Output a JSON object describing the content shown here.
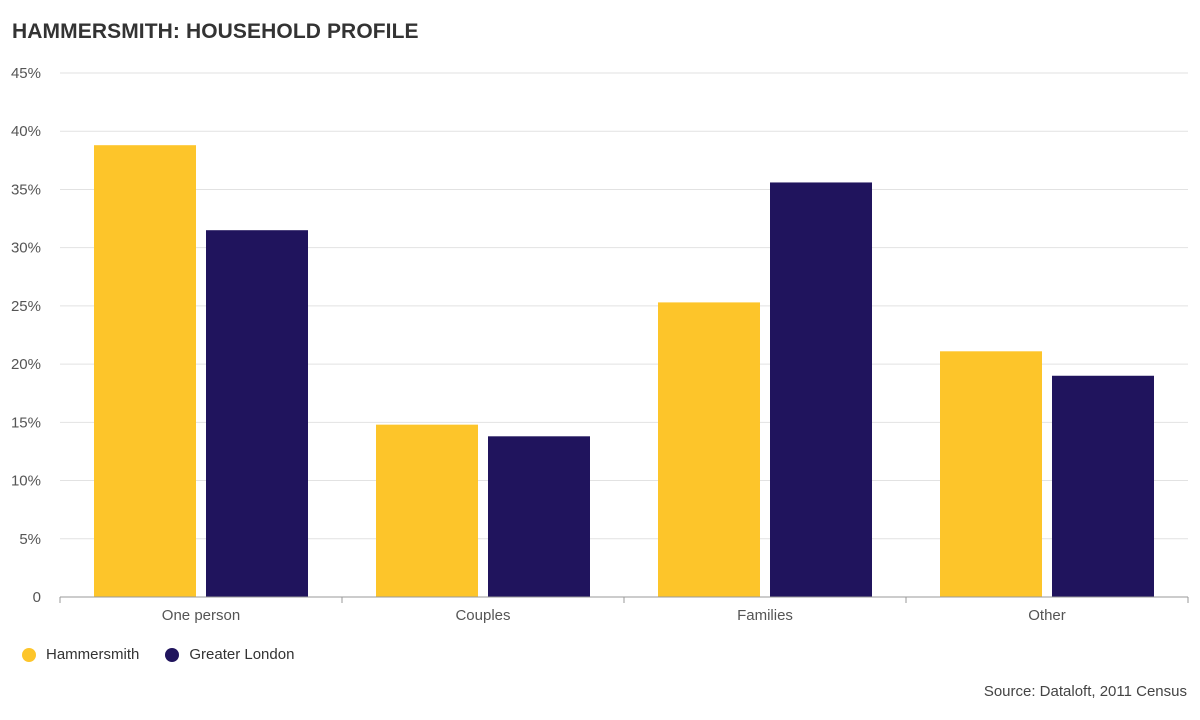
{
  "title": "HAMMERSMITH: HOUSEHOLD PROFILE",
  "source": "Source: Dataloft, 2011 Census",
  "colors": {
    "hammersmith": "#fdc52a",
    "greater_london": "#20145d",
    "grid": "#e2e2e2",
    "axis": "#999999"
  },
  "chart_data": {
    "type": "bar",
    "title": "HAMMERSMITH: HOUSEHOLD PROFILE",
    "xlabel": "",
    "ylabel": "",
    "categories": [
      "One person",
      "Couples",
      "Families",
      "Other"
    ],
    "series": [
      {
        "name": "Hammersmith",
        "color": "#fdc52a",
        "values": [
          38.8,
          14.8,
          25.3,
          21.1
        ]
      },
      {
        "name": "Greater London",
        "color": "#20145d",
        "values": [
          31.5,
          13.8,
          35.6,
          19.0
        ]
      }
    ],
    "ylim": [
      0,
      45
    ],
    "yticks": [
      0,
      5,
      10,
      15,
      20,
      25,
      30,
      35,
      40,
      45
    ],
    "ytick_labels": [
      "0",
      "5%",
      "10%",
      "15%",
      "20%",
      "25%",
      "30%",
      "35%",
      "40%",
      "45%"
    ],
    "grid": true,
    "legend": "bottom-left"
  }
}
